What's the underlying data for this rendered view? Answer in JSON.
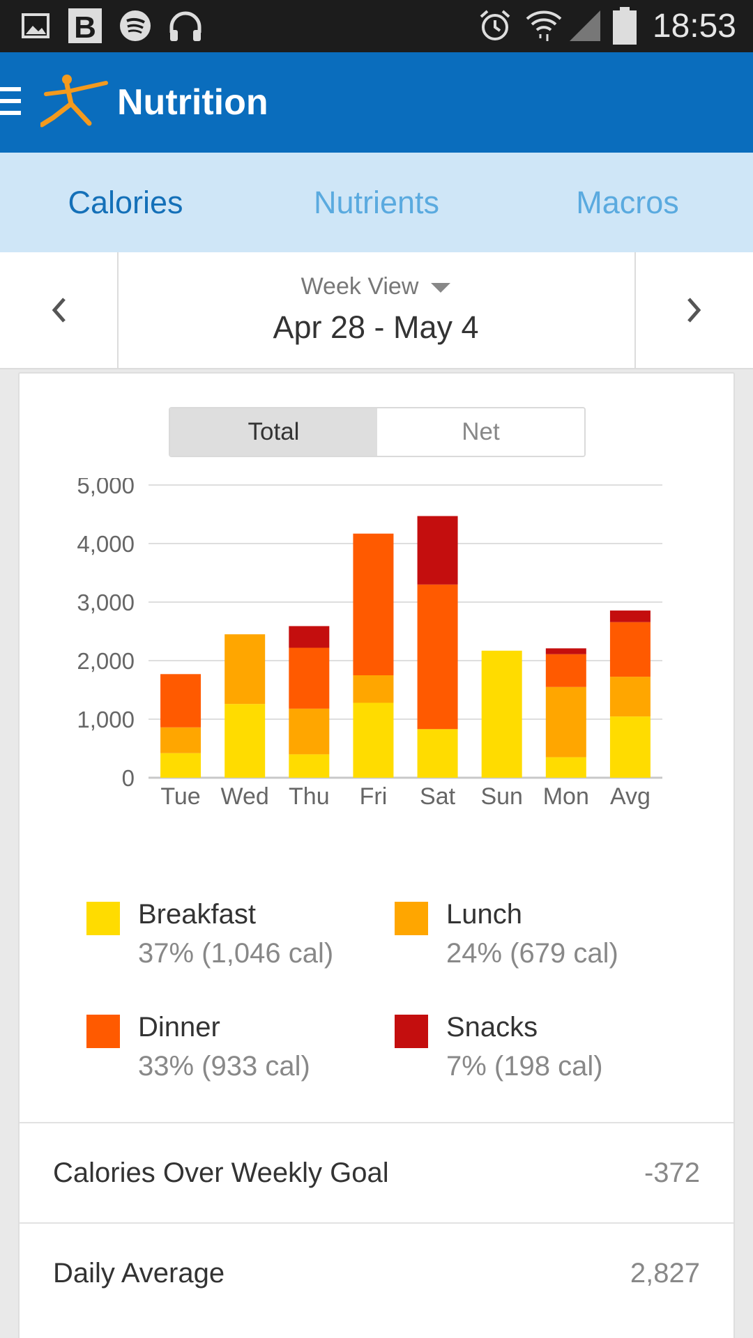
{
  "status_bar": {
    "left_icons": [
      "gallery-icon",
      "b-app-icon",
      "spotify-icon",
      "headphones-icon"
    ],
    "right_icons": [
      "alarm-icon",
      "wifi-icon",
      "signal-icon",
      "battery-icon"
    ],
    "time": "18:53"
  },
  "app_bar": {
    "title": "Nutrition",
    "menu_icon": "hamburger-icon",
    "logo": "myfitnesspal-figure-logo"
  },
  "tabs": [
    {
      "label": "Calories",
      "active": true
    },
    {
      "label": "Nutrients",
      "active": false
    },
    {
      "label": "Macros",
      "active": false
    }
  ],
  "week_nav": {
    "view_label": "Week View",
    "range": "Apr 28 - May 4"
  },
  "toggle": {
    "total_label": "Total",
    "net_label": "Net",
    "selected": "Total"
  },
  "chart_data": {
    "type": "bar",
    "stacked": true,
    "categories": [
      "Tue",
      "Wed",
      "Thu",
      "Fri",
      "Sat",
      "Sun",
      "Mon",
      "Avg"
    ],
    "series": [
      {
        "name": "Breakfast",
        "color": "#ffdc00",
        "values": [
          420,
          1260,
          400,
          1280,
          830,
          2170,
          350,
          1046
        ]
      },
      {
        "name": "Lunch",
        "color": "#ffa600",
        "values": [
          440,
          1190,
          780,
          470,
          0,
          0,
          1200,
          679
        ]
      },
      {
        "name": "Dinner",
        "color": "#ff5a00",
        "values": [
          910,
          0,
          1040,
          2420,
          2470,
          0,
          560,
          933
        ]
      },
      {
        "name": "Snacks",
        "color": "#c40e0e",
        "values": [
          0,
          0,
          370,
          0,
          1170,
          0,
          100,
          198
        ]
      }
    ],
    "yticks": [
      0,
      1000,
      2000,
      3000,
      4000,
      5000
    ],
    "ytick_labels": [
      "0",
      "1,000",
      "2,000",
      "3,000",
      "4,000",
      "5,000"
    ],
    "ylim": [
      0,
      5000
    ],
    "grid": true
  },
  "legend": [
    {
      "name": "Breakfast",
      "detail": "37% (1,046 cal)",
      "color": "#ffdc00"
    },
    {
      "name": "Lunch",
      "detail": "24% (679 cal)",
      "color": "#ffa600"
    },
    {
      "name": "Dinner",
      "detail": "33% (933 cal)",
      "color": "#ff5a00"
    },
    {
      "name": "Snacks",
      "detail": "7% (198 cal)",
      "color": "#c40e0e"
    }
  ],
  "summary": [
    {
      "label": "Calories Over Weekly Goal",
      "value": "-372"
    },
    {
      "label": "Daily Average",
      "value": "2,827"
    }
  ],
  "colors": {
    "app_bar": "#0a6dbd",
    "tab_bar": "#cfe6f7",
    "tab_active": "#1470b8",
    "tab_inactive": "#5aaadf"
  }
}
